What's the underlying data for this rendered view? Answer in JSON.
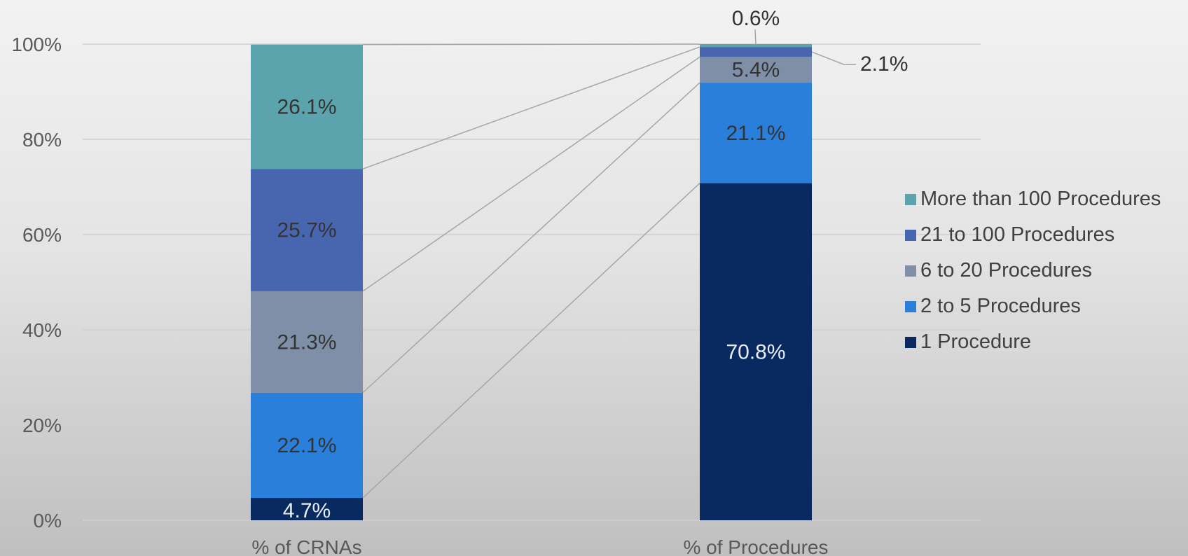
{
  "chart_data": {
    "type": "bar",
    "stacked": true,
    "percent_stacked": true,
    "categories": [
      "% of CRNAs",
      "% of Procedures"
    ],
    "series": [
      {
        "name": "1 Procedure",
        "values": [
          4.7,
          70.8
        ],
        "color": "#082a61",
        "labels": [
          "4.7%",
          "70.8%"
        ]
      },
      {
        "name": "2 to 5 Procedures",
        "values": [
          22.1,
          21.1
        ],
        "color": "#2a7fdb",
        "labels": [
          "22.1%",
          "21.1%"
        ]
      },
      {
        "name": "6 to 20 Procedures",
        "values": [
          21.3,
          5.4
        ],
        "color": "#7f8fa8",
        "labels": [
          "21.3%",
          "5.4%"
        ]
      },
      {
        "name": "21 to 100 Procedures",
        "values": [
          25.7,
          2.1
        ],
        "color": "#4866b0",
        "labels": [
          "25.7%",
          "2.1%"
        ]
      },
      {
        "name": "More than 100 Procedures",
        "values": [
          26.1,
          0.6
        ],
        "color": "#5ba4ae",
        "labels": [
          "26.1%",
          "0.6%"
        ]
      }
    ],
    "yticks": [
      "0%",
      "20%",
      "40%",
      "60%",
      "80%",
      "100%"
    ],
    "ylim": [
      0,
      100
    ],
    "grid": true,
    "series_lines": true,
    "legend": "right",
    "title": "",
    "xlabel": "",
    "ylabel": ""
  }
}
